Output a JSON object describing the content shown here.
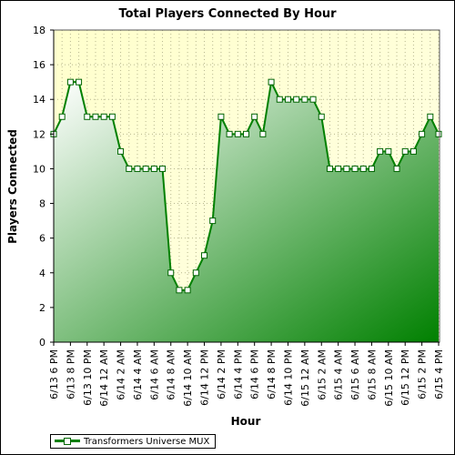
{
  "chart_data": {
    "type": "area",
    "title": "Total Players Connected By Hour",
    "xlabel": "Hour",
    "ylabel": "Players Connected",
    "ylim": [
      0,
      18
    ],
    "yticks": [
      0,
      2,
      4,
      6,
      8,
      10,
      12,
      14,
      16,
      18
    ],
    "grid": true,
    "legend_position": "bottom-left",
    "colors": {
      "line": "#008000",
      "fill_start": "#ffffff",
      "fill_end": "#008000",
      "plot_bg": "#ffffcc"
    },
    "tick_labels": [
      "6/13 6 PM",
      "6/13 8 PM",
      "6/13 10 PM",
      "6/14 12 AM",
      "6/14 2 AM",
      "6/14 4 AM",
      "6/14 6 AM",
      "6/14 8 AM",
      "6/14 10 AM",
      "6/14 12 PM",
      "6/14 2 PM",
      "6/14 4 PM",
      "6/14 6 PM",
      "6/14 8 PM",
      "6/14 10 PM",
      "6/15 12 AM",
      "6/15 2 AM",
      "6/15 4 AM",
      "6/15 6 AM",
      "6/15 8 AM",
      "6/15 10 AM",
      "6/15 12 PM",
      "6/15 2 PM",
      "6/15 4 PM"
    ],
    "series": [
      {
        "name": "Transformers Universe MUX",
        "values": [
          12,
          13,
          15,
          15,
          13,
          13,
          13,
          13,
          11,
          10,
          10,
          10,
          10,
          10,
          4,
          3,
          3,
          4,
          5,
          7,
          13,
          12,
          12,
          12,
          13,
          12,
          15,
          14,
          14,
          14,
          14,
          14,
          13,
          10,
          10,
          10,
          10,
          10,
          10,
          11,
          11,
          10,
          11,
          11,
          12,
          13,
          12
        ]
      }
    ]
  }
}
